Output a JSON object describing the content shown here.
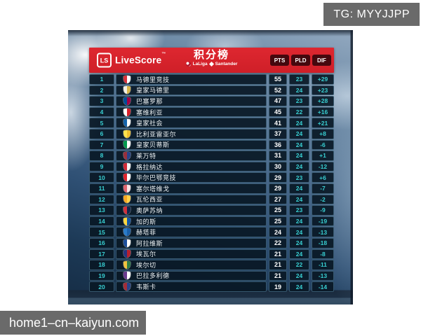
{
  "overlay": {
    "tg_label": "TG: MYYJJPP",
    "site_label": "home1–cn–kaiyun.com",
    "box_color": "#6a6a6a"
  },
  "header": {
    "logo_monogram": "LS",
    "brand": "LiveScore",
    "trademark": "™",
    "title": "积分榜",
    "league": "LaLiga",
    "sponsor": "Santander",
    "bar_color": "#d7242c",
    "button_color": "#45080e",
    "columns": [
      "PTS",
      "PLD",
      "DIF"
    ]
  },
  "table": {
    "accent_text_color": "#38cfd2",
    "rows": [
      {
        "rank": "1",
        "team": "马德里竞技",
        "pts": "55",
        "pld": "23",
        "dif": "+29",
        "badge": [
          "#d6323b",
          "#ffffff"
        ]
      },
      {
        "rank": "2",
        "team": "皇家马德里",
        "pts": "52",
        "pld": "24",
        "dif": "+23",
        "badge": [
          "#f4f0e4",
          "#d9b64a"
        ]
      },
      {
        "rank": "3",
        "team": "巴塞罗那",
        "pts": "47",
        "pld": "23",
        "dif": "+28",
        "badge": [
          "#004d98",
          "#a50044"
        ]
      },
      {
        "rank": "4",
        "team": "塞维利亚",
        "pts": "45",
        "pld": "22",
        "dif": "+16",
        "badge": [
          "#ffffff",
          "#d81f2a"
        ]
      },
      {
        "rank": "5",
        "team": "皇家社会",
        "pts": "41",
        "pld": "24",
        "dif": "+21",
        "badge": [
          "#1464ac",
          "#ffffff"
        ]
      },
      {
        "rank": "6",
        "team": "比利亚雷亚尔",
        "pts": "37",
        "pld": "24",
        "dif": "+8",
        "badge": [
          "#ffe24d",
          "#f0bf2e"
        ]
      },
      {
        "rank": "7",
        "team": "皇家贝蒂斯",
        "pts": "36",
        "pld": "24",
        "dif": "-6",
        "badge": [
          "#00994e",
          "#ffffff"
        ]
      },
      {
        "rank": "8",
        "team": "莱万特",
        "pts": "31",
        "pld": "24",
        "dif": "+1",
        "badge": [
          "#992f3c",
          "#27448c"
        ]
      },
      {
        "rank": "9",
        "team": "格拉纳达",
        "pts": "30",
        "pld": "24",
        "dif": "-12",
        "badge": [
          "#d12836",
          "#f2f2f2"
        ]
      },
      {
        "rank": "10",
        "team": "毕尔巴鄂竞技",
        "pts": "29",
        "pld": "23",
        "dif": "+6",
        "badge": [
          "#e0242e",
          "#ffffff"
        ]
      },
      {
        "rank": "11",
        "team": "塞尔塔维戈",
        "pts": "29",
        "pld": "24",
        "dif": "-7",
        "badge": [
          "#e06570",
          "#f7e6e8"
        ]
      },
      {
        "rank": "12",
        "team": "瓦伦西亚",
        "pts": "27",
        "pld": "24",
        "dif": "-2",
        "badge": [
          "#f7a823",
          "#ffd24a"
        ]
      },
      {
        "rank": "13",
        "team": "奥萨苏纳",
        "pts": "25",
        "pld": "23",
        "dif": "-9",
        "badge": [
          "#d0313b",
          "#10264d"
        ]
      },
      {
        "rank": "14",
        "team": "加的斯",
        "pts": "25",
        "pld": "24",
        "dif": "-19",
        "badge": [
          "#ffd83d",
          "#1157a6"
        ]
      },
      {
        "rank": "15",
        "team": "赫塔菲",
        "pts": "24",
        "pld": "24",
        "dif": "-13",
        "badge": [
          "#2a7cc9",
          "#1a5fa8"
        ]
      },
      {
        "rank": "16",
        "team": "阿拉维斯",
        "pts": "22",
        "pld": "24",
        "dif": "-18",
        "badge": [
          "#1c4f9c",
          "#ffffff"
        ]
      },
      {
        "rank": "17",
        "team": "埃瓦尔",
        "pts": "21",
        "pld": "24",
        "dif": "-8",
        "badge": [
          "#27357e",
          "#b81f2d"
        ]
      },
      {
        "rank": "18",
        "team": "埃尔切",
        "pts": "21",
        "pld": "22",
        "dif": "-11",
        "badge": [
          "#efc23f",
          "#2e7d46"
        ]
      },
      {
        "rank": "19",
        "team": "巴拉多利德",
        "pts": "21",
        "pld": "24",
        "dif": "-13",
        "badge": [
          "#6a3a8e",
          "#ffffff"
        ]
      },
      {
        "rank": "20",
        "team": "韦斯卡",
        "pts": "19",
        "pld": "24",
        "dif": "-14",
        "badge": [
          "#a42d38",
          "#27448c"
        ]
      }
    ]
  }
}
